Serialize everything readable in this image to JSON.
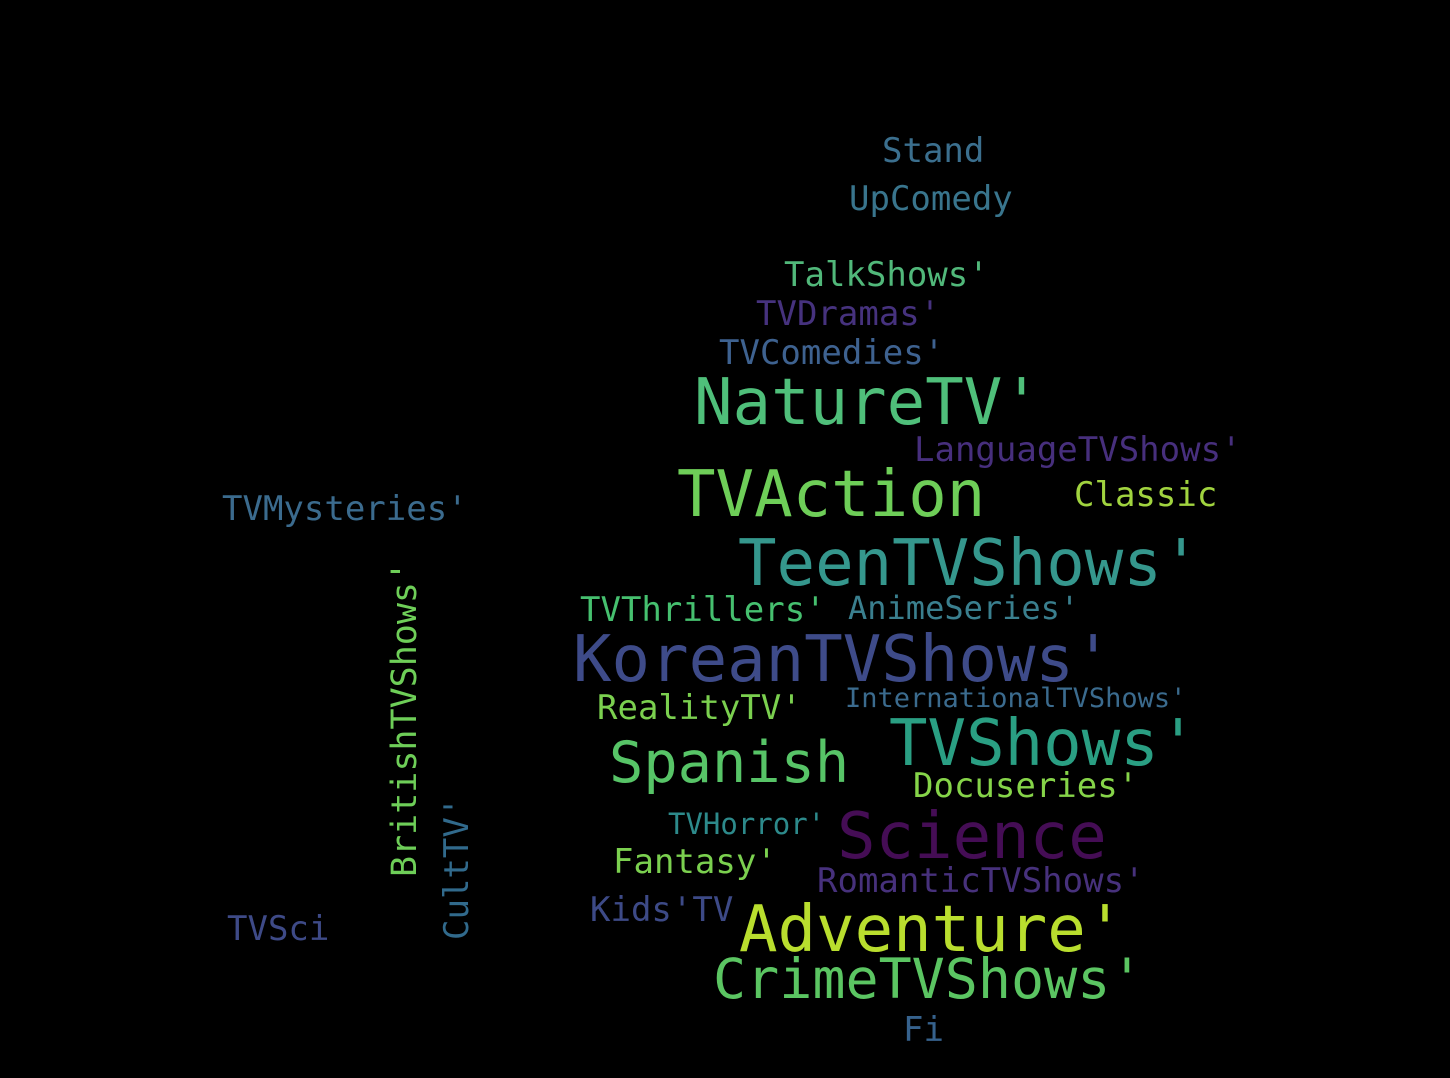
{
  "words": [
    {
      "text": "Stand",
      "color": "#3b6f8e"
    },
    {
      "text": "UpComedy",
      "color": "#39758d"
    },
    {
      "text": "TalkShows'",
      "color": "#51b87a"
    },
    {
      "text": "TVDramas'",
      "color": "#46327e"
    },
    {
      "text": "TVComedies'",
      "color": "#3e6290"
    },
    {
      "text": "NatureTV'",
      "color": "#4fbf7a"
    },
    {
      "text": "LanguageTVShows'",
      "color": "#472f7d"
    },
    {
      "text": "TVAction",
      "color": "#6ece58"
    },
    {
      "text": "Classic",
      "color": "#a1d43f"
    },
    {
      "text": "TVMysteries'",
      "color": "#3b6b8e"
    },
    {
      "text": "TeenTVShows'",
      "color": "#35978d"
    },
    {
      "text": "TVThrillers'",
      "color": "#46c06f"
    },
    {
      "text": "AnimeSeries'",
      "color": "#3a7f8e"
    },
    {
      "text": "BritishTVShows'",
      "color": "#6ece58"
    },
    {
      "text": "KoreanTVShows'",
      "color": "#3e4b89"
    },
    {
      "text": "RealityTV'",
      "color": "#7bd04f"
    },
    {
      "text": "InternationalTVShows'",
      "color": "#3b6b8e"
    },
    {
      "text": "Spanish",
      "color": "#57c467"
    },
    {
      "text": "TVShows'",
      "color": "#2a9f83"
    },
    {
      "text": "Docuseries'",
      "color": "#86d449"
    },
    {
      "text": "TVHorror'",
      "color": "#2d8a8b"
    },
    {
      "text": "Science",
      "color": "#450d55"
    },
    {
      "text": "CultTV'",
      "color": "#316a8c"
    },
    {
      "text": "Fantasy'",
      "color": "#7bd04f"
    },
    {
      "text": "RomanticTVShows'",
      "color": "#47317c"
    },
    {
      "text": "Kids'TV",
      "color": "#3d4a87"
    },
    {
      "text": "TVSci",
      "color": "#3e4a87"
    },
    {
      "text": "Adventure'",
      "color": "#b9de2e"
    },
    {
      "text": "CrimeTVShows'",
      "color": "#5bc562"
    },
    {
      "text": "Fi",
      "color": "#36628d"
    }
  ]
}
